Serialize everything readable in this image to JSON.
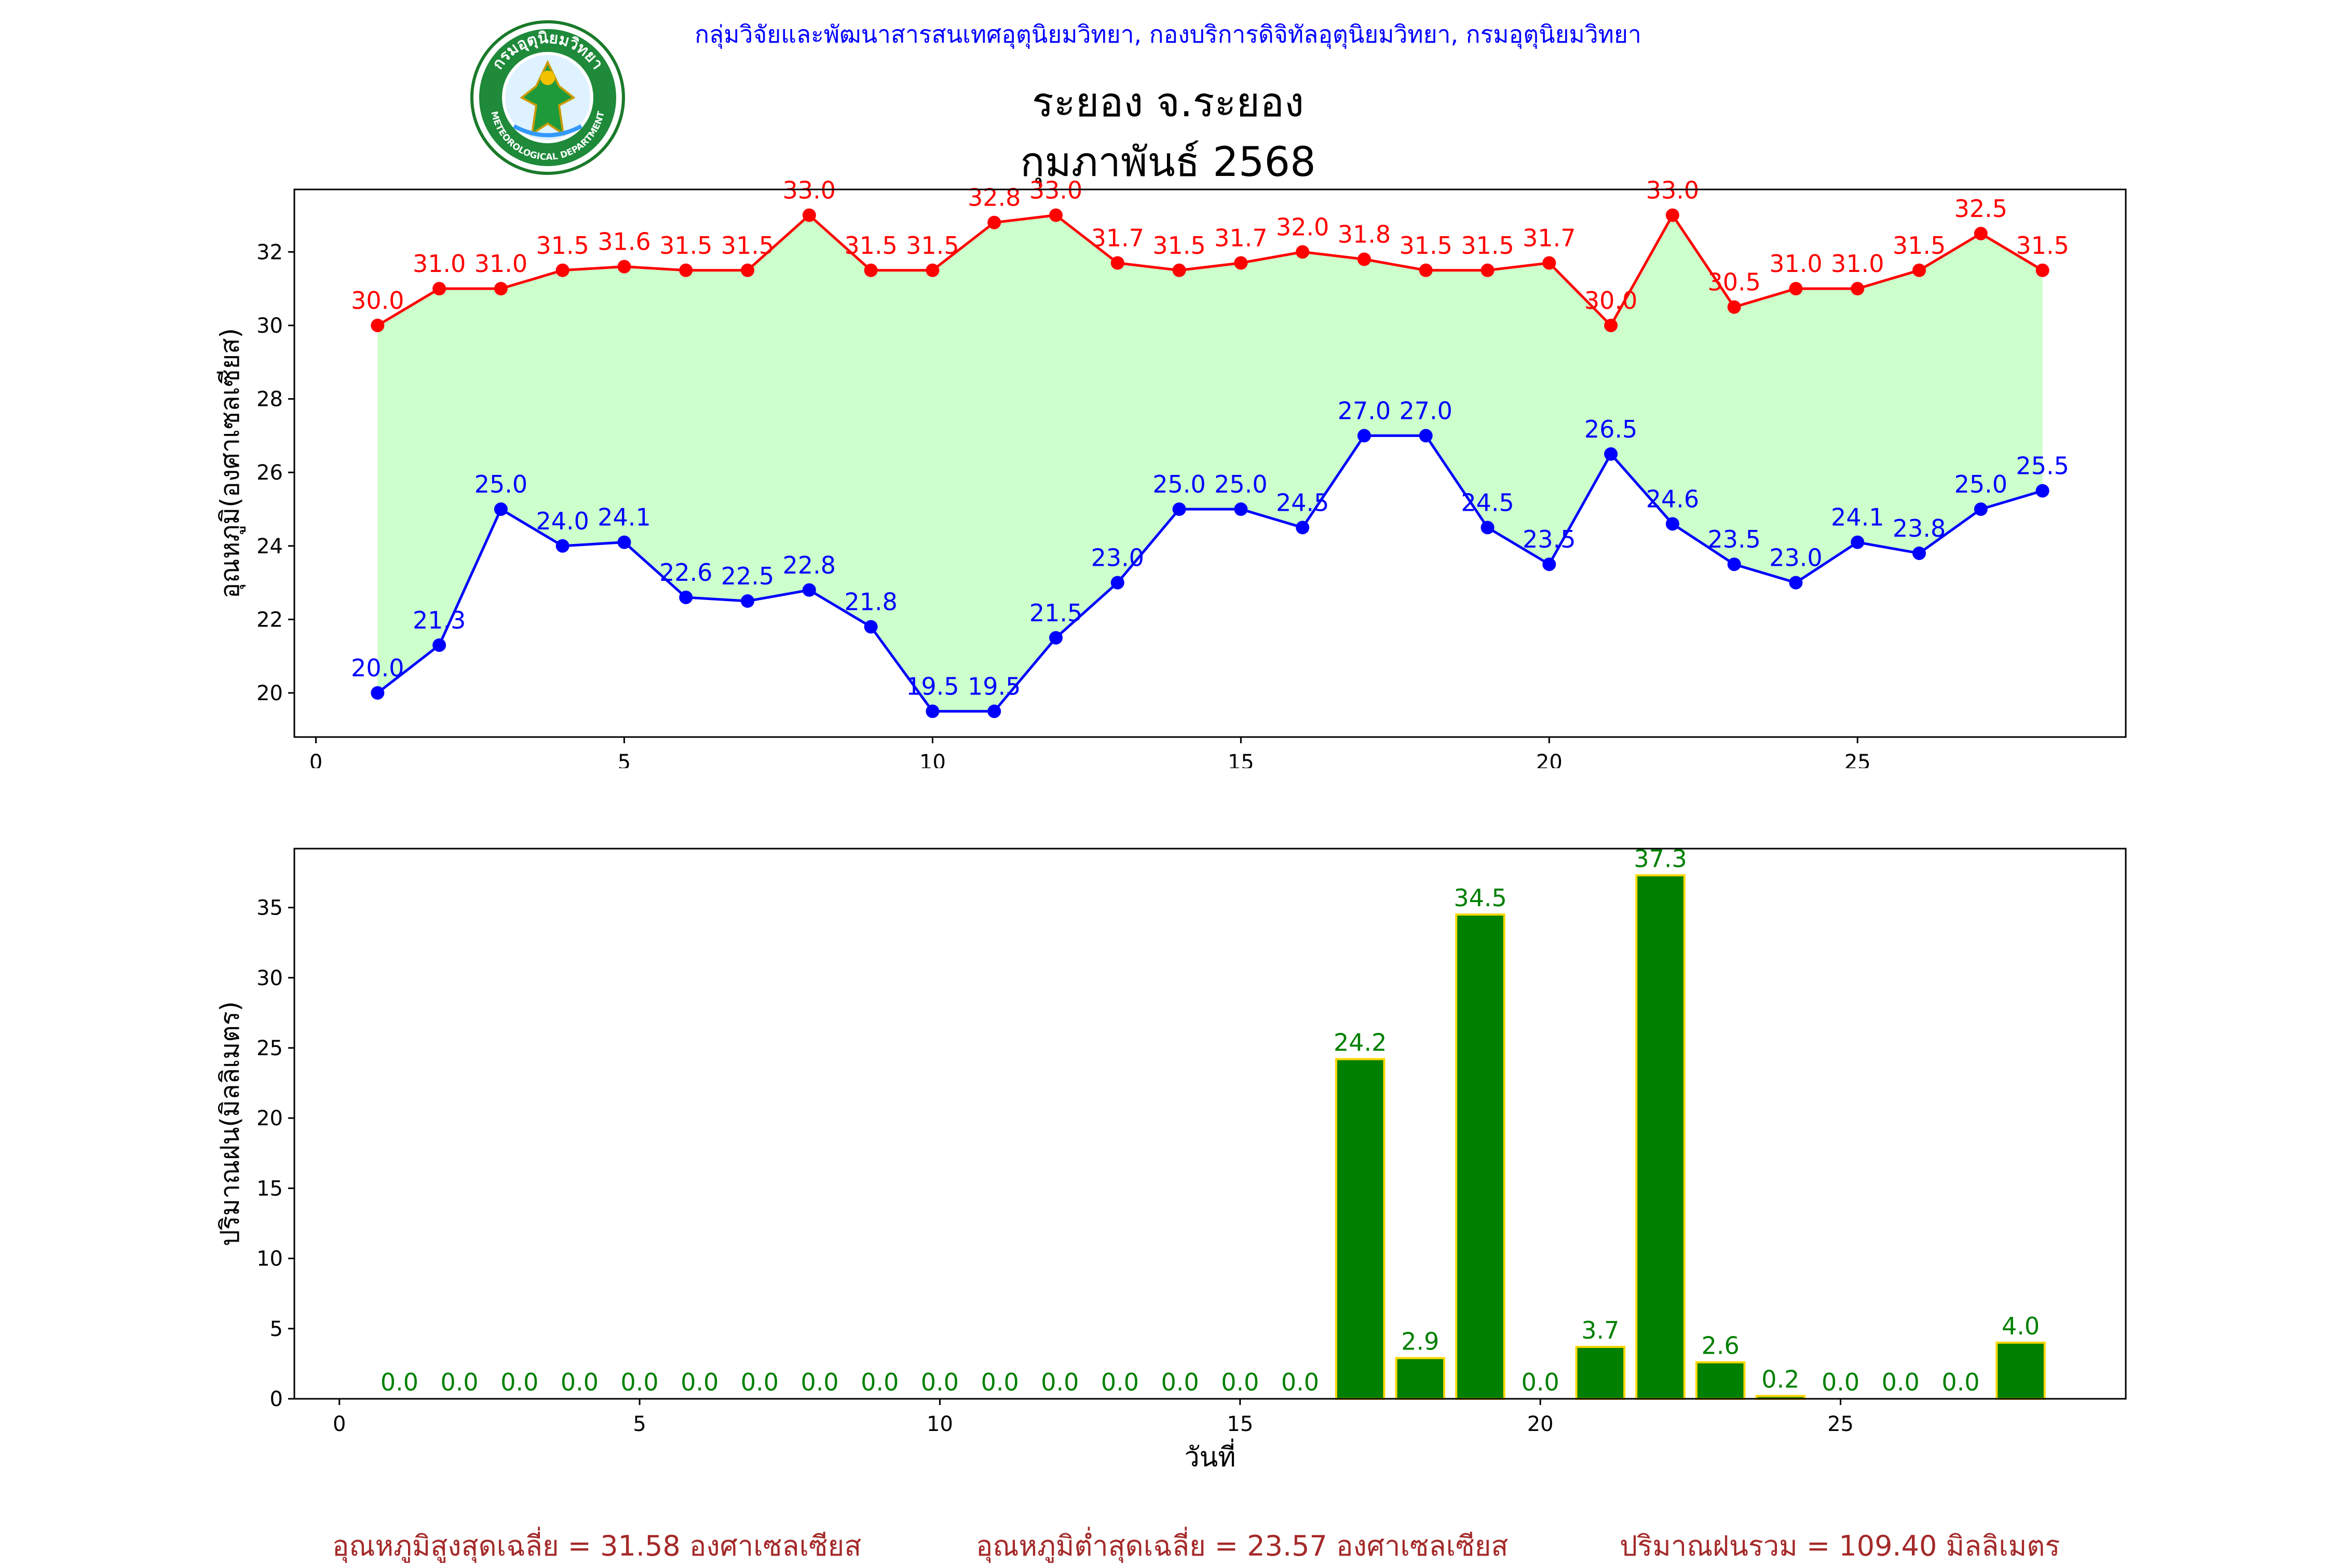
{
  "header": {
    "agency": "กลุ่มวิจัยและพัฒนาสารสนเทศอุตุนิยมวิทยา, กองบริการดิจิทัลอุตุนิยมวิทยา, กรมอุตุนิยมวิทยา",
    "station": "ระยอง จ.ระยอง",
    "period": "กุมภาพันธ์ 2568"
  },
  "logo": {
    "icon": "meteorological-department-seal-icon",
    "text_top": "กรมอุตุนิยมวิทยา",
    "text_bottom": "METEOROLOGICAL DEPARTMENT"
  },
  "colors": {
    "max_line": "#ff0000",
    "min_line": "#0000ff",
    "band_fill": "#ccffcc",
    "rain_bar": "#008000",
    "rain_bar_edge": "#ffd700",
    "rain_label": "#008000",
    "header_text": "#0000ff",
    "summary_text": "#a52a2a"
  },
  "summary": {
    "max_avg": "อุณหภูมิสูงสุดเฉลี่ย = 31.58 องศาเซลเซียส",
    "min_avg": "อุณหภูมิต่ำสุดเฉลี่ย = 23.57 องศาเซลเซียส",
    "rain_total": "ปริมาณฝนรวม = 109.40 มิลลิเมตร"
  },
  "chart_data": [
    {
      "type": "line",
      "ylabel": "อุณหภูมิ(องศาเซลเซียส)",
      "xlabel": "",
      "x": [
        1,
        2,
        3,
        4,
        5,
        6,
        7,
        8,
        9,
        10,
        11,
        12,
        13,
        14,
        15,
        16,
        17,
        18,
        19,
        20,
        21,
        22,
        23,
        24,
        25,
        26,
        27,
        28
      ],
      "series": [
        {
          "key": "max",
          "values": [
            30.0,
            31.0,
            31.0,
            31.5,
            31.6,
            31.5,
            31.5,
            33.0,
            31.5,
            31.5,
            32.8,
            33.0,
            31.7,
            31.5,
            31.7,
            32.0,
            31.8,
            31.5,
            31.5,
            31.7,
            30.0,
            33.0,
            30.5,
            31.0,
            31.0,
            31.5,
            32.5,
            31.5
          ]
        },
        {
          "key": "min",
          "values": [
            20.0,
            21.3,
            25.0,
            24.0,
            24.1,
            22.6,
            22.5,
            22.8,
            21.8,
            19.5,
            19.5,
            21.5,
            23.0,
            25.0,
            25.0,
            24.5,
            27.0,
            27.0,
            24.5,
            23.5,
            26.5,
            24.6,
            23.5,
            23.0,
            24.1,
            23.8,
            25.0,
            25.5
          ]
        }
      ],
      "fill_between": [
        "min",
        "max"
      ],
      "xlim": [
        -0.35,
        29.35
      ],
      "ylim": [
        18.8,
        33.7
      ],
      "xticks": [
        0,
        5,
        10,
        15,
        20,
        25
      ],
      "yticks": [
        20,
        22,
        24,
        26,
        28,
        30,
        32
      ],
      "grid": false
    },
    {
      "type": "bar",
      "ylabel": "ปริมาณฝน(มิลลิเมตร)",
      "xlabel": "วันที่",
      "x": [
        1,
        2,
        3,
        4,
        5,
        6,
        7,
        8,
        9,
        10,
        11,
        12,
        13,
        14,
        15,
        16,
        17,
        18,
        19,
        20,
        21,
        22,
        23,
        24,
        25,
        26,
        27,
        28
      ],
      "values": [
        0.0,
        0.0,
        0.0,
        0.0,
        0.0,
        0.0,
        0.0,
        0.0,
        0.0,
        0.0,
        0.0,
        0.0,
        0.0,
        0.0,
        0.0,
        0.0,
        24.2,
        2.9,
        34.5,
        0.0,
        3.7,
        37.3,
        2.6,
        0.2,
        0.0,
        0.0,
        0.0,
        4.0
      ],
      "xlim": [
        -0.75,
        29.75
      ],
      "ylim": [
        0,
        39.2
      ],
      "xticks": [
        0,
        5,
        10,
        15,
        20,
        25
      ],
      "yticks": [
        0,
        5,
        10,
        15,
        20,
        25,
        30,
        35
      ],
      "grid": false
    }
  ]
}
